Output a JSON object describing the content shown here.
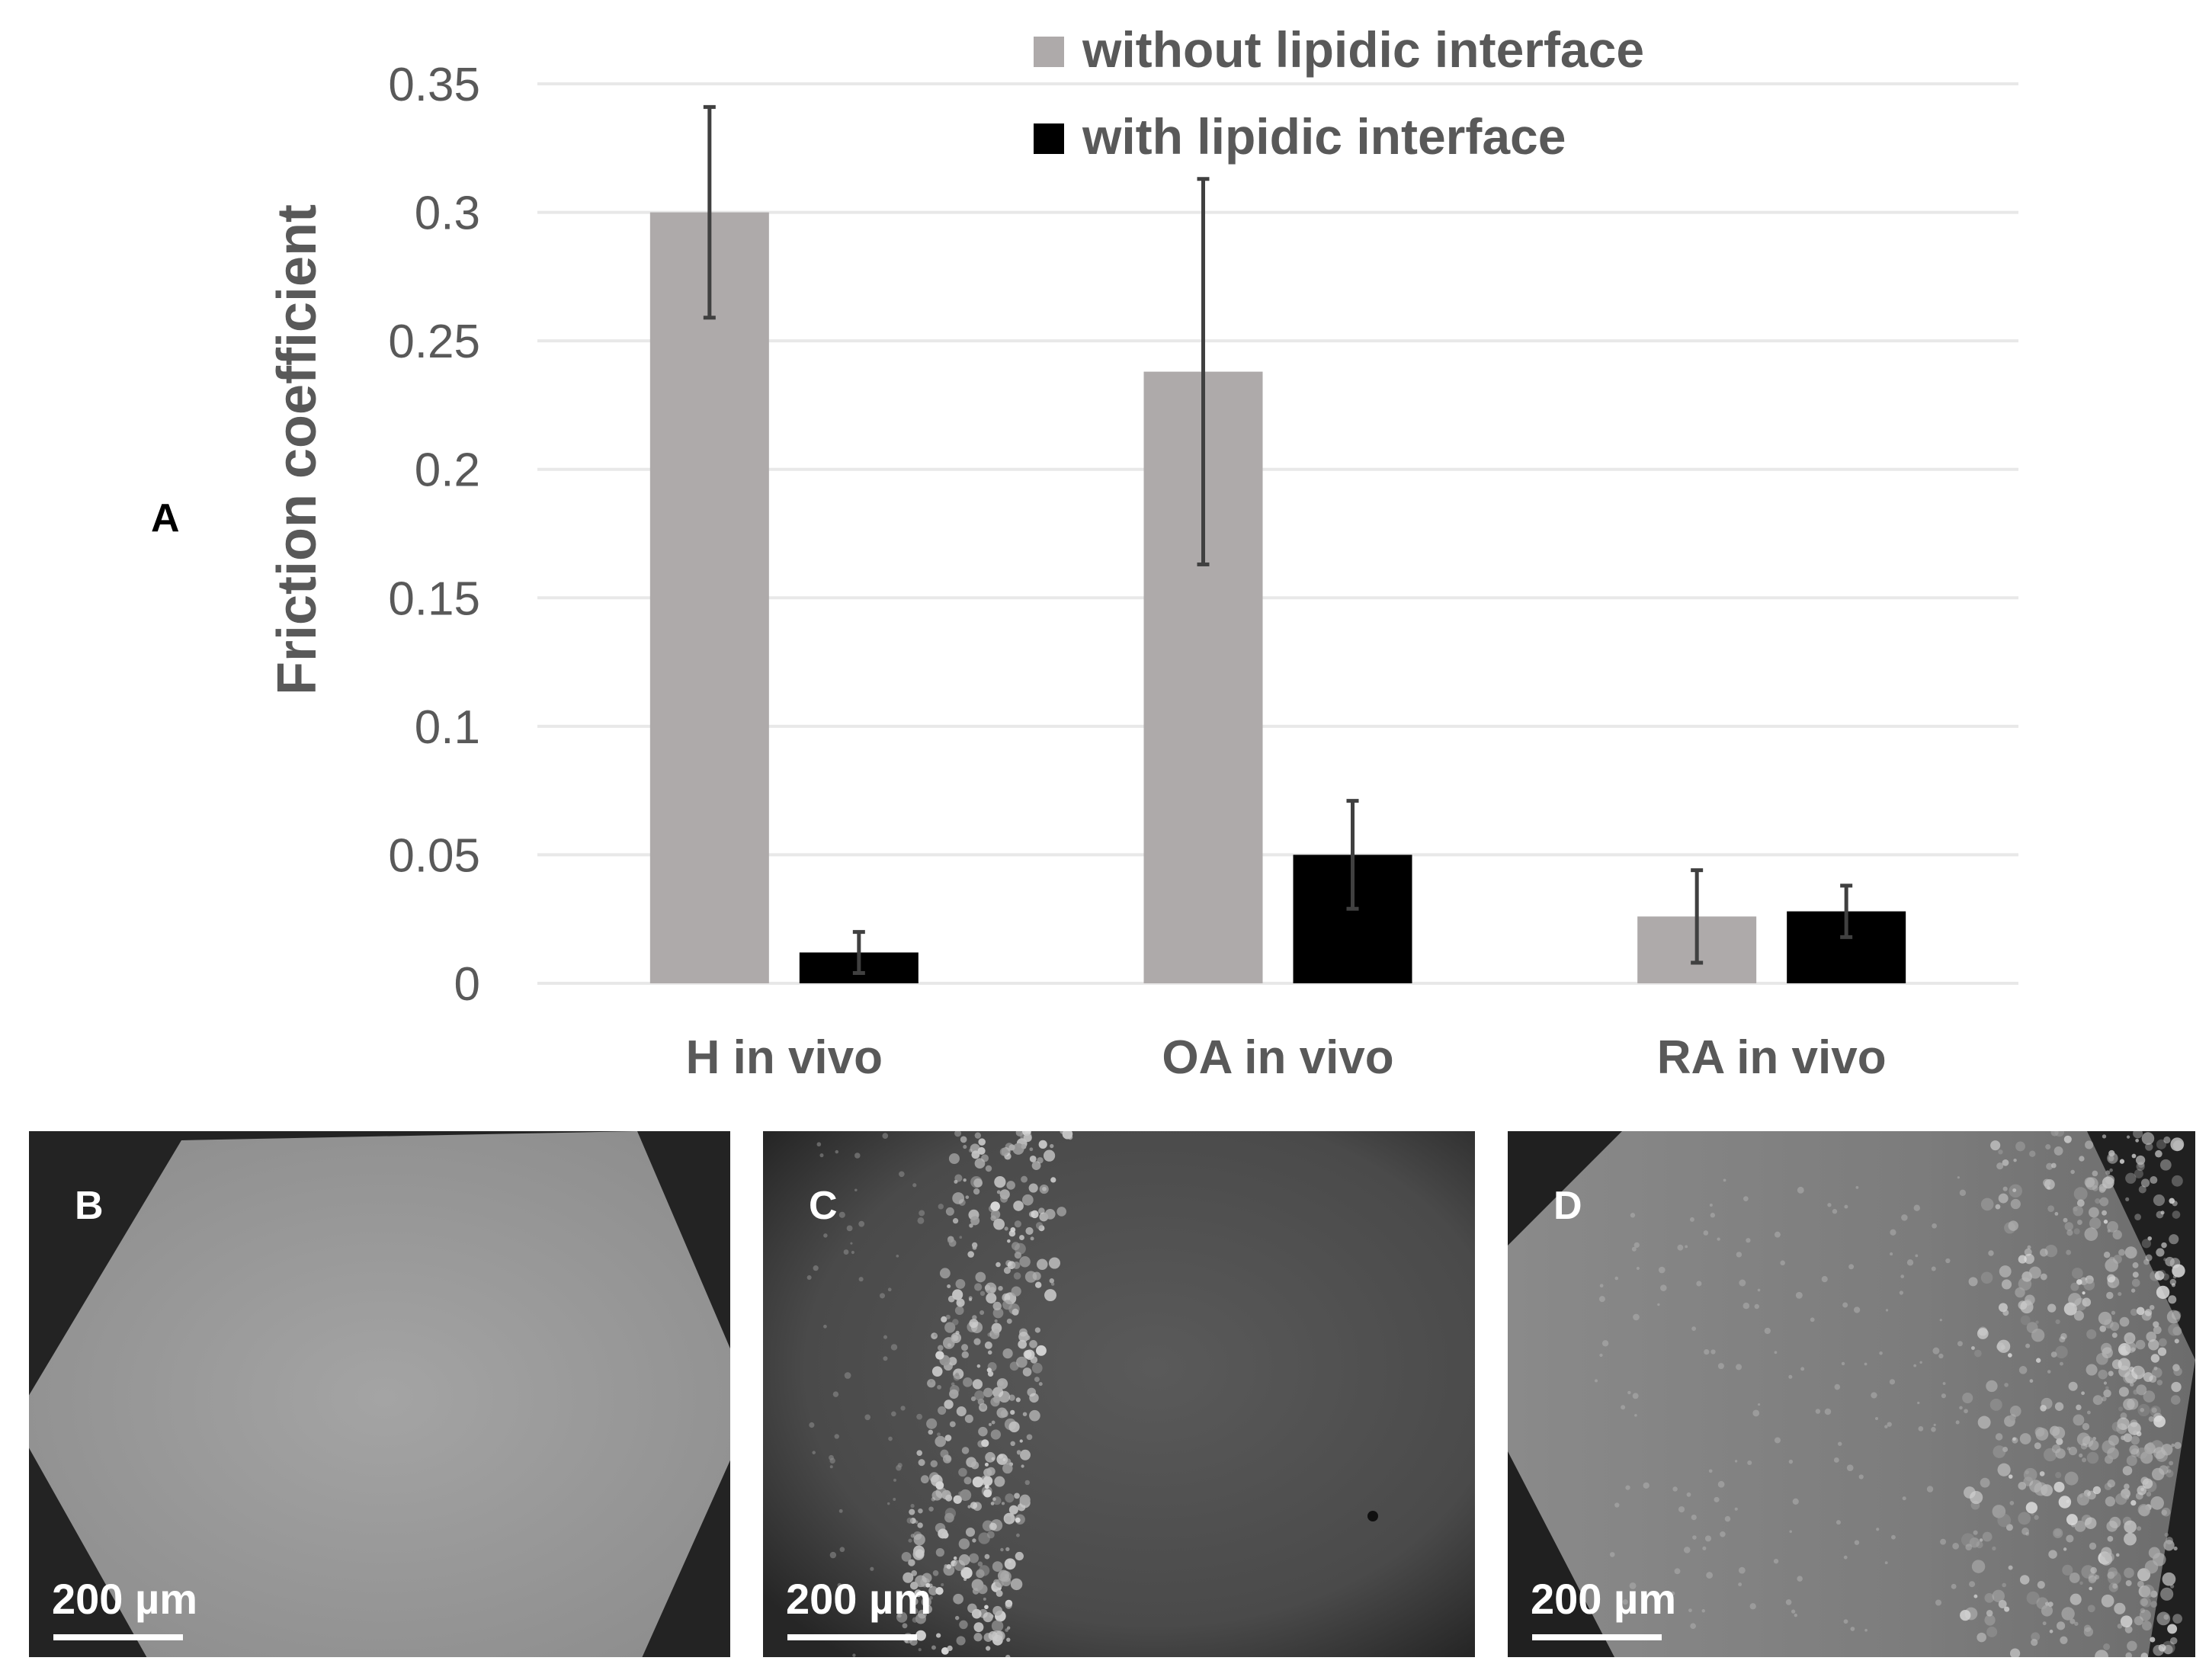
{
  "figure": {
    "panel_label_a": "A"
  },
  "chart_data": {
    "type": "bar",
    "ylabel": "Friction coefficient",
    "xlabel": "",
    "ylim": [
      0,
      0.35
    ],
    "yticks": [
      "0",
      "0.05",
      "0.1",
      "0.15",
      "0.2",
      "0.25",
      "0.3",
      "0.35"
    ],
    "ytick_values": [
      0,
      0.05,
      0.1,
      0.15,
      0.2,
      0.25,
      0.3,
      0.35
    ],
    "grid": true,
    "legend_position": "top-right",
    "categories": [
      "H in vivo",
      "OA in vivo",
      "RA in vivo"
    ],
    "series": [
      {
        "name": "without lipidic interface",
        "color": "#aeaaaa",
        "values": [
          0.3,
          0.238,
          0.026
        ],
        "errors": [
          0.041,
          0.075,
          0.018
        ]
      },
      {
        "name": "with lipidic interface",
        "color": "#000000",
        "values": [
          0.012,
          0.05,
          0.028
        ],
        "errors": [
          0.008,
          0.021,
          0.01
        ]
      }
    ]
  },
  "panels": [
    {
      "label": "B",
      "scale": "200 µm",
      "pattern": "uniform"
    },
    {
      "label": "C",
      "scale": "200 µm",
      "pattern": "band"
    },
    {
      "label": "D",
      "scale": "200 µm",
      "pattern": "edge"
    }
  ],
  "colors": {
    "error_bar": "#404040",
    "grid": "#e8e8e8",
    "text": "#595959"
  }
}
